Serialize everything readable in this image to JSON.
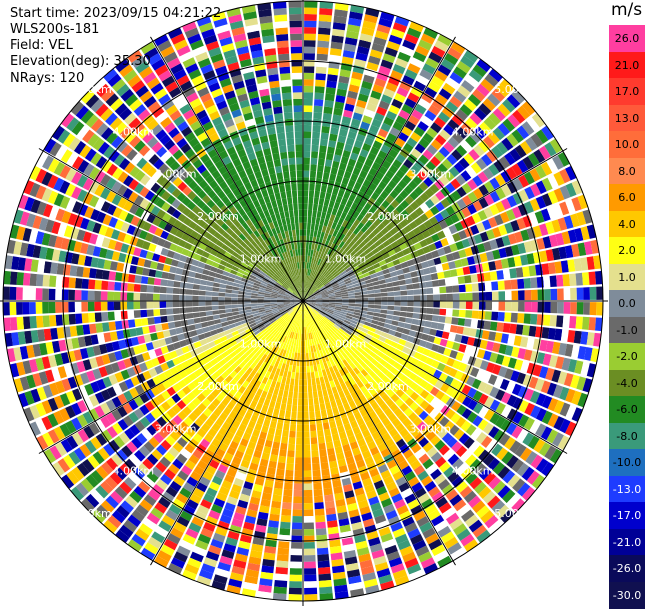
{
  "info": {
    "start_time": "Start time: 2023/09/15 04:21:22",
    "site": "WLS200s-181",
    "field": "Field: VEL",
    "elevation": "Elevation(deg): 35.30",
    "nrays": "NRays: 120"
  },
  "colorbar": {
    "unit": "m/s",
    "bins": [
      {
        "label": "26.0",
        "color": "#ff3ea0"
      },
      {
        "label": "21.0",
        "color": "#ff1a1a"
      },
      {
        "label": "17.0",
        "color": "#ff3b2e"
      },
      {
        "label": "13.0",
        "color": "#ff5a3a"
      },
      {
        "label": "10.0",
        "color": "#ff6d3a"
      },
      {
        "label": "8.0",
        "color": "#ff8a50"
      },
      {
        "label": "6.0",
        "color": "#ff9a00"
      },
      {
        "label": "4.0",
        "color": "#ffc800"
      },
      {
        "label": "2.0",
        "color": "#ffff14"
      },
      {
        "label": "1.0",
        "color": "#e4e08e"
      },
      {
        "label": "0.0",
        "color": "#7f8c9a"
      },
      {
        "label": "-1.0",
        "color": "#6a6a6a"
      },
      {
        "label": "-2.0",
        "color": "#9acd32"
      },
      {
        "label": "-4.0",
        "color": "#6b8e23"
      },
      {
        "label": "-6.0",
        "color": "#228b22"
      },
      {
        "label": "-8.0",
        "color": "#3a9a7a"
      },
      {
        "label": "-10.0",
        "color": "#1e6fbf"
      },
      {
        "label": "-13.0",
        "color": "#1e3cff"
      },
      {
        "label": "-17.0",
        "color": "#0000cd"
      },
      {
        "label": "-21.0",
        "color": "#000096"
      },
      {
        "label": "-26.0",
        "color": "#0a0a5a"
      },
      {
        "label": "-30.0",
        "color": "#101050"
      }
    ]
  },
  "chart_data": {
    "type": "heatmap",
    "field": "VEL",
    "unit": "m/s",
    "nrays": 120,
    "elevation_deg": 35.3,
    "range_ring_labels": [
      "1.00km",
      "2.00km",
      "3.00km",
      "4.00km",
      "5.00km"
    ],
    "velocity_scale": [
      -30.0,
      -26.0,
      -21.0,
      -17.0,
      -13.0,
      -10.0,
      -8.0,
      -6.0,
      -4.0,
      -2.0,
      -1.0,
      0.0,
      1.0,
      2.0,
      4.0,
      6.0,
      8.0,
      10.0,
      13.0,
      17.0,
      21.0,
      26.0
    ],
    "sectors": [
      {
        "direction": "north",
        "velocity_range": [
          -8.0,
          -2.0
        ],
        "description_color": "green"
      },
      {
        "direction": "west",
        "velocity_range": [
          -1.0,
          1.0
        ],
        "description_color": "gray"
      },
      {
        "direction": "east",
        "velocity_range": [
          -1.0,
          1.0
        ],
        "description_color": "gray"
      },
      {
        "direction": "south",
        "velocity_range": [
          2.0,
          8.0
        ],
        "description_color": "yellow-orange"
      }
    ]
  }
}
